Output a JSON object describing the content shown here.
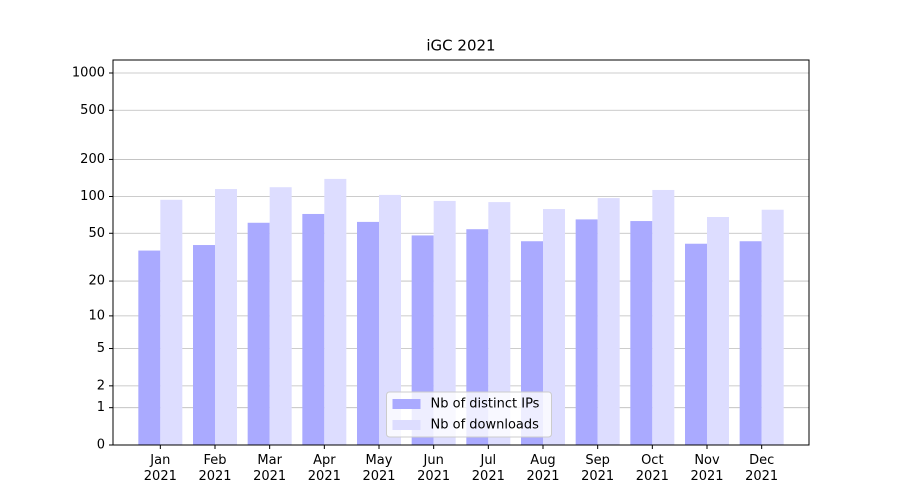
{
  "chart_data": {
    "type": "bar",
    "title": "iGC 2021",
    "categories": [
      "Jan\n2021",
      "Feb\n2021",
      "Mar\n2021",
      "Apr\n2021",
      "May\n2021",
      "Jun\n2021",
      "Jul\n2021",
      "Aug\n2021",
      "Sep\n2021",
      "Oct\n2021",
      "Nov\n2021",
      "Dec\n2021"
    ],
    "series": [
      {
        "name": "Nb of distinct IPs",
        "color": "#aaaaff",
        "values": [
          36,
          40,
          61,
          72,
          62,
          48,
          54,
          43,
          65,
          63,
          41,
          43
        ]
      },
      {
        "name": "Nb of downloads",
        "color": "#ddddff",
        "values": [
          94,
          115,
          119,
          139,
          103,
          92,
          90,
          79,
          97,
          113,
          68,
          78
        ]
      }
    ],
    "yscale": "log1p",
    "ylim": [
      0,
      1273
    ],
    "yticks": [
      0,
      1,
      2,
      5,
      10,
      20,
      50,
      100,
      200,
      500,
      1000
    ],
    "grid": true,
    "legend": "lower center"
  }
}
